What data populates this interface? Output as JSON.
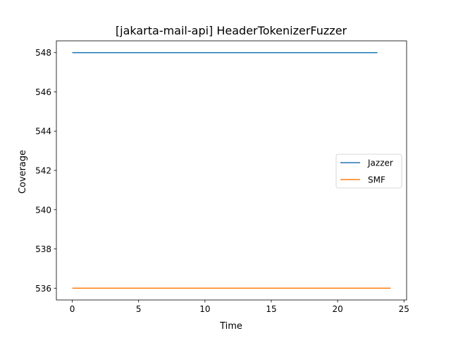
{
  "chart_data": {
    "type": "line",
    "title": "[jakarta-mail-api] HeaderTokenizerFuzzer",
    "xlabel": "Time",
    "ylabel": "Coverage",
    "xlim": [
      -1.2,
      25.2
    ],
    "ylim": [
      535.4,
      548.6
    ],
    "xticks": [
      0,
      5,
      10,
      15,
      20,
      25
    ],
    "yticks": [
      536,
      538,
      540,
      542,
      544,
      546,
      548
    ],
    "grid": false,
    "legend_position": "center-right",
    "series": [
      {
        "name": "Jazzer",
        "color": "#1f77b4",
        "x": [
          0,
          23
        ],
        "y": [
          548,
          548
        ]
      },
      {
        "name": "SMF",
        "color": "#ff7f0e",
        "x": [
          0,
          24
        ],
        "y": [
          536,
          536
        ]
      }
    ]
  }
}
